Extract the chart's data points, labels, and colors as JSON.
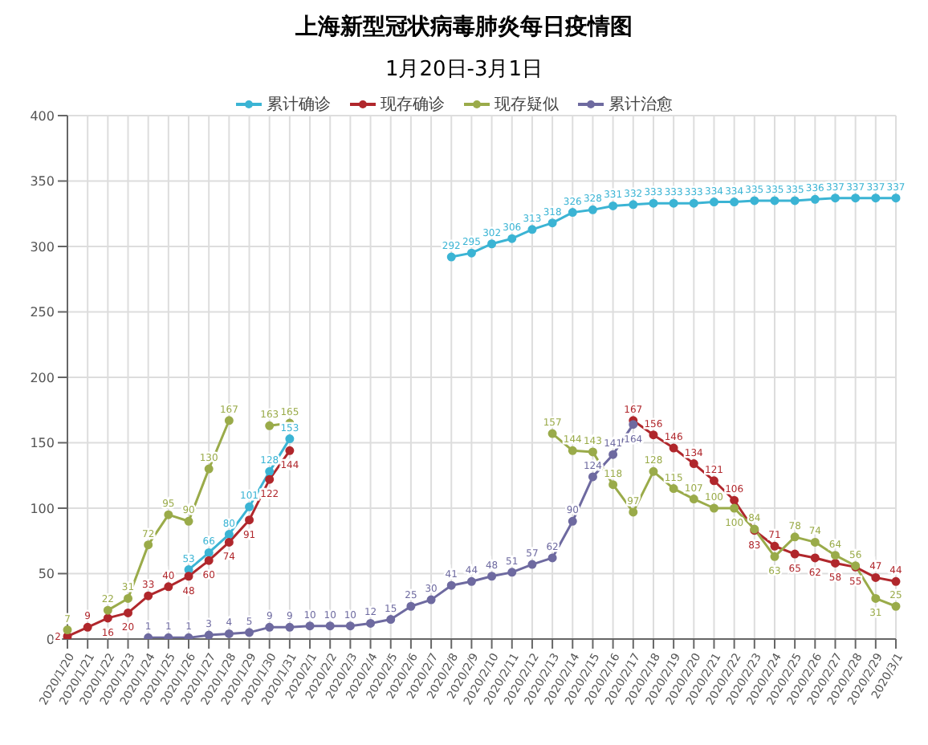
{
  "chart_data": {
    "type": "line",
    "title": "上海新型冠状病毒肺炎每日疫情图",
    "subtitle": "1月20日-3月1日",
    "categories": [
      "2020/1/20",
      "2020/1/21",
      "2020/1/22",
      "2020/1/23",
      "2020/1/24",
      "2020/1/25",
      "2020/1/26",
      "2020/1/27",
      "2020/1/28",
      "2020/1/29",
      "2020/1/30",
      "2020/1/31",
      "2020/2/1",
      "2020/2/2",
      "2020/2/3",
      "2020/2/4",
      "2020/2/5",
      "2020/2/6",
      "2020/2/7",
      "2020/2/8",
      "2020/2/9",
      "2020/2/10",
      "2020/2/11",
      "2020/2/12",
      "2020/2/13",
      "2020/2/14",
      "2020/2/15",
      "2020/2/16",
      "2020/2/17",
      "2020/2/18",
      "2020/2/19",
      "2020/2/20",
      "2020/2/21",
      "2020/2/22",
      "2020/2/23",
      "2020/2/24",
      "2020/2/25",
      "2020/2/26",
      "2020/2/27",
      "2020/2/28",
      "2020/2/29",
      "2020/3/1"
    ],
    "series": [
      {
        "name": "累计确诊",
        "color": "#3bb4d4",
        "values": [
          null,
          null,
          null,
          null,
          null,
          null,
          53,
          66,
          80,
          101,
          128,
          153,
          null,
          null,
          null,
          null,
          null,
          null,
          null,
          292,
          295,
          302,
          306,
          313,
          318,
          326,
          328,
          331,
          332,
          333,
          333,
          333,
          334,
          334,
          335,
          335,
          335,
          336,
          337,
          337,
          337,
          337
        ]
      },
      {
        "name": "现存确诊",
        "color": "#b0272c",
        "values": [
          2,
          9,
          16,
          20,
          33,
          40,
          48,
          60,
          74,
          91,
          122,
          144,
          null,
          null,
          null,
          null,
          null,
          null,
          null,
          null,
          null,
          null,
          null,
          null,
          null,
          null,
          null,
          null,
          167,
          156,
          146,
          134,
          121,
          106,
          83,
          71,
          65,
          62,
          58,
          55,
          47,
          44
        ]
      },
      {
        "name": "现存疑似",
        "color": "#9aab4a",
        "values": [
          7,
          null,
          22,
          31,
          72,
          95,
          90,
          130,
          167,
          null,
          163,
          165,
          null,
          null,
          null,
          null,
          null,
          null,
          null,
          null,
          null,
          null,
          null,
          null,
          157,
          144,
          143,
          118,
          97,
          128,
          115,
          107,
          100,
          100,
          84,
          63,
          78,
          74,
          64,
          56,
          31,
          25
        ]
      },
      {
        "name": "累计治愈",
        "color": "#6e6aa0",
        "values": [
          null,
          null,
          null,
          null,
          1,
          1,
          1,
          3,
          4,
          5,
          9,
          9,
          10,
          10,
          10,
          12,
          15,
          25,
          30,
          41,
          44,
          48,
          51,
          57,
          62,
          90,
          124,
          141,
          164,
          null,
          null,
          null,
          null,
          null,
          null,
          null,
          null,
          null,
          null,
          null,
          null,
          null
        ]
      }
    ],
    "ylim": [
      0,
      400
    ],
    "yticks": [
      0,
      50,
      100,
      150,
      200,
      250,
      300,
      350,
      400
    ],
    "grid": true,
    "legend": "top",
    "marker": "circle",
    "line_style": "solid",
    "data_labels": true
  }
}
